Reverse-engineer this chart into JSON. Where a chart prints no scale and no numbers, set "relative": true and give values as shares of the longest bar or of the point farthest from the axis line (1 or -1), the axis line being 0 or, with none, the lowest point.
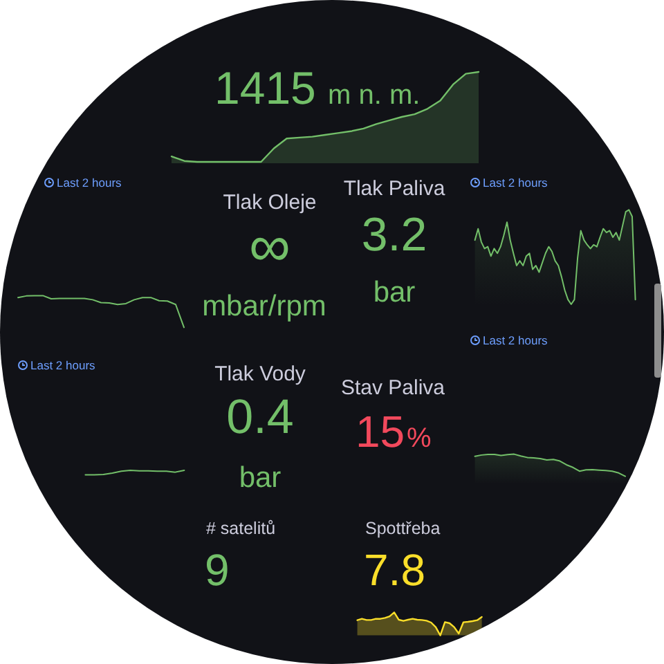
{
  "chart_data": [
    {
      "type": "area",
      "relative": true,
      "categories": [
        null,
        null,
        null,
        null,
        null,
        null,
        null,
        null,
        null,
        null,
        null,
        null,
        null,
        null,
        null,
        null,
        null,
        null,
        null,
        null,
        null,
        null,
        null,
        null,
        null
      ],
      "values": [
        0.06,
        0.01,
        0,
        0,
        0,
        0,
        0,
        0,
        0.15,
        0.26,
        0.27,
        0.28,
        0.3,
        0.32,
        0.34,
        0.37,
        0.42,
        0.46,
        0.5,
        0.53,
        0.59,
        0.68,
        0.86,
        0.98,
        1
      ],
      "color": "#73bf69",
      "annotations": [
        "1415",
        "m n. m."
      ]
    },
    {
      "type": "line",
      "relative": true,
      "categories": [
        null,
        null,
        null,
        null,
        null,
        null,
        null,
        null,
        null,
        null,
        null,
        null,
        null,
        null,
        null,
        null,
        null,
        null,
        null,
        null,
        null
      ],
      "values": [
        0.94,
        0.99,
        1,
        1,
        0.9,
        0.91,
        0.91,
        0.91,
        0.91,
        0.87,
        0.78,
        0.77,
        0.72,
        0.75,
        0.87,
        0.94,
        0.94,
        0.84,
        0.83,
        0.72,
        0
      ],
      "color": "#73bf69",
      "annotations": [
        "Last 2 hours"
      ]
    },
    {
      "type": "other",
      "title": "Tlak Oleje",
      "annotations": [
        "∞",
        "mbar/rpm"
      ],
      "color": "#73bf69"
    },
    {
      "type": "other",
      "title": "Tlak Paliva",
      "annotations": [
        "3.2",
        "bar"
      ],
      "color": "#73bf69"
    },
    {
      "type": "area",
      "relative": true,
      "categories": [
        null,
        null,
        null,
        null,
        null,
        null,
        null,
        null,
        null,
        null,
        null,
        null,
        null,
        null,
        null,
        null,
        null,
        null,
        null,
        null,
        null,
        null,
        null,
        null,
        null,
        null,
        null,
        null,
        null,
        null,
        null,
        null,
        null,
        null,
        null,
        null,
        null,
        null,
        null,
        null,
        null,
        null,
        null,
        null,
        null,
        null,
        null,
        null,
        null,
        null,
        null
      ],
      "values": [
        0.68,
        0.8,
        0.66,
        0.59,
        0.61,
        0.51,
        0.59,
        0.54,
        0.61,
        0.73,
        0.87,
        0.68,
        0.54,
        0.41,
        0.46,
        0.41,
        0.51,
        0.54,
        0.37,
        0.41,
        0.34,
        0.44,
        0.54,
        0.61,
        0.56,
        0.46,
        0.41,
        0.29,
        0.15,
        0.05,
        0,
        0.05,
        0.49,
        0.78,
        0.68,
        0.63,
        0.59,
        0.63,
        0.61,
        0.71,
        0.8,
        0.76,
        0.78,
        0.71,
        0.76,
        0.68,
        0.83,
        0.98,
        1,
        0.93,
        0.05
      ],
      "color": "#73bf69",
      "annotations": [
        "Last 2 hours"
      ]
    },
    {
      "type": "line",
      "relative": true,
      "categories": [
        null,
        null,
        null,
        null,
        null,
        null,
        null,
        null,
        null,
        null,
        null,
        null
      ],
      "values": [
        0,
        0,
        0.1,
        0.4,
        0.8,
        1,
        0.9,
        0.9,
        0.8,
        0.8,
        0.6,
        1
      ],
      "color": "#73bf69",
      "annotations": [
        "Last 2 hours"
      ]
    },
    {
      "type": "other",
      "title": "Tlak Vody",
      "annotations": [
        "0.4",
        "bar"
      ],
      "color": "#73bf69"
    },
    {
      "type": "other",
      "title": "Stav Paliva",
      "annotations": [
        "15",
        "%"
      ],
      "color": "#f2495c"
    },
    {
      "type": "area",
      "relative": true,
      "categories": [
        null,
        null,
        null,
        null,
        null,
        null,
        null,
        null,
        null,
        null,
        null,
        null,
        null,
        null,
        null,
        null,
        null,
        null,
        null,
        null,
        null,
        null,
        null,
        null
      ],
      "values": [
        0.9,
        0.96,
        0.99,
        0.99,
        0.94,
        0.98,
        1,
        0.92,
        0.85,
        0.83,
        0.8,
        0.74,
        0.76,
        0.69,
        0.52,
        0.4,
        0.23,
        0.29,
        0.3,
        0.28,
        0.26,
        0.23,
        0.15,
        0
      ],
      "color": "#73bf69",
      "annotations": [
        "Last 2 hours"
      ]
    },
    {
      "type": "other",
      "title": "# satelitů",
      "annotations": [
        "9"
      ],
      "color": "#73bf69"
    },
    {
      "type": "area",
      "relative": true,
      "title": "Spottřeba",
      "categories": [
        null,
        null,
        null,
        null,
        null,
        null,
        null,
        null,
        null,
        null,
        null,
        null,
        null,
        null,
        null,
        null,
        null,
        null,
        null,
        null,
        null,
        null,
        null,
        null,
        null,
        null,
        null,
        null
      ],
      "values": [
        0.66,
        0.72,
        0.67,
        0.67,
        0.72,
        0.72,
        0.76,
        0.83,
        1,
        0.68,
        0.63,
        0.68,
        0.72,
        0.68,
        0.67,
        0.64,
        0.56,
        0.36,
        0,
        0.58,
        0.53,
        0.36,
        0.08,
        0.57,
        0.59,
        0.62,
        0.66,
        0.8
      ],
      "color": "#fade2a",
      "annotations": [
        "7.8"
      ]
    }
  ]
}
